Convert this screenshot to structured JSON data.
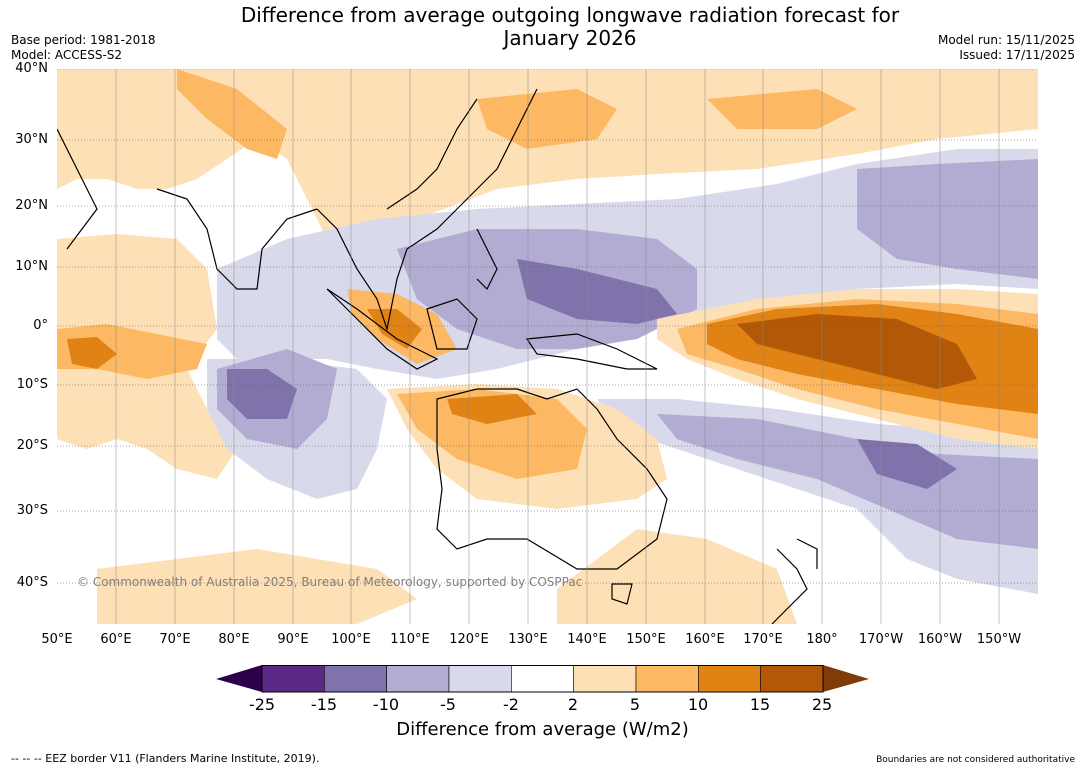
{
  "header": {
    "title_line1": "Difference from average outgoing longwave radiation forecast for",
    "title_line2": "January 2026",
    "base_period": "Base period: 1981-2018",
    "model": "Model: ACCESS-S2",
    "model_run": "Model run: 15/11/2025",
    "issued": "Issued: 17/11/2025"
  },
  "map": {
    "latitudes": [
      "40°N",
      "30°N",
      "20°N",
      "10°N",
      "0°",
      "10°S",
      "20°S",
      "30°S",
      "40°S"
    ],
    "longitudes": [
      "50°E",
      "60°E",
      "70°E",
      "80°E",
      "90°E",
      "100°E",
      "110°E",
      "120°E",
      "130°E",
      "140°E",
      "150°E",
      "160°E",
      "170°E",
      "180°",
      "170°W",
      "160°W",
      "150°W"
    ],
    "copyright": "© Commonwealth of Australia 2025, Bureau of Meteorology, supported by COSPPac"
  },
  "colorbar": {
    "label": "Difference from average (W/m2)",
    "ticks": [
      "-25",
      "-15",
      "-10",
      "-5",
      "-2",
      "2",
      "5",
      "10",
      "15",
      "25"
    ],
    "colors": [
      "#5b2a86",
      "#8073ac",
      "#b2abd2",
      "#d8daeb",
      "#ffffff",
      "#fee0b6",
      "#fdb863",
      "#e08214",
      "#b35806"
    ],
    "low_extension_color": "#2d004b",
    "high_extension_color": "#7f3b08"
  },
  "footer": {
    "eez_note": "--  --  -- EEZ border V11 (Flanders Marine Institute, 2019).",
    "boundaries_note": "Boundaries are not considered authoritative"
  }
}
